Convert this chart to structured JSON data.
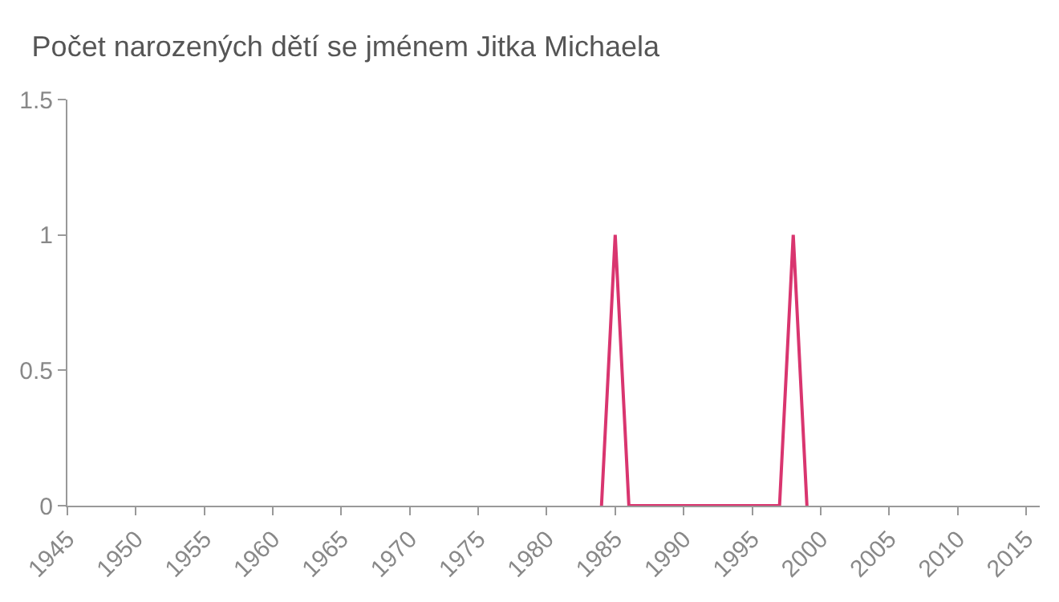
{
  "chart_data": {
    "type": "line",
    "title": "Počet narozených dětí se jménem Jitka Michaela",
    "x": [
      1984,
      1985,
      1986,
      1997,
      1998,
      1999
    ],
    "series": [
      {
        "color": "#d9356f",
        "values": [
          0,
          1,
          0,
          0,
          1,
          0
        ]
      }
    ],
    "xlim": [
      1945,
      2016
    ],
    "xticks": [
      1945,
      1950,
      1955,
      1960,
      1965,
      1970,
      1975,
      1980,
      1985,
      1990,
      1995,
      2000,
      2005,
      2010,
      2015
    ],
    "ylim": [
      0,
      1.5
    ],
    "yticks": [
      0,
      0.5,
      1,
      1.5
    ],
    "grid": false,
    "legend": false,
    "marker": "none",
    "line_style": "solid"
  }
}
